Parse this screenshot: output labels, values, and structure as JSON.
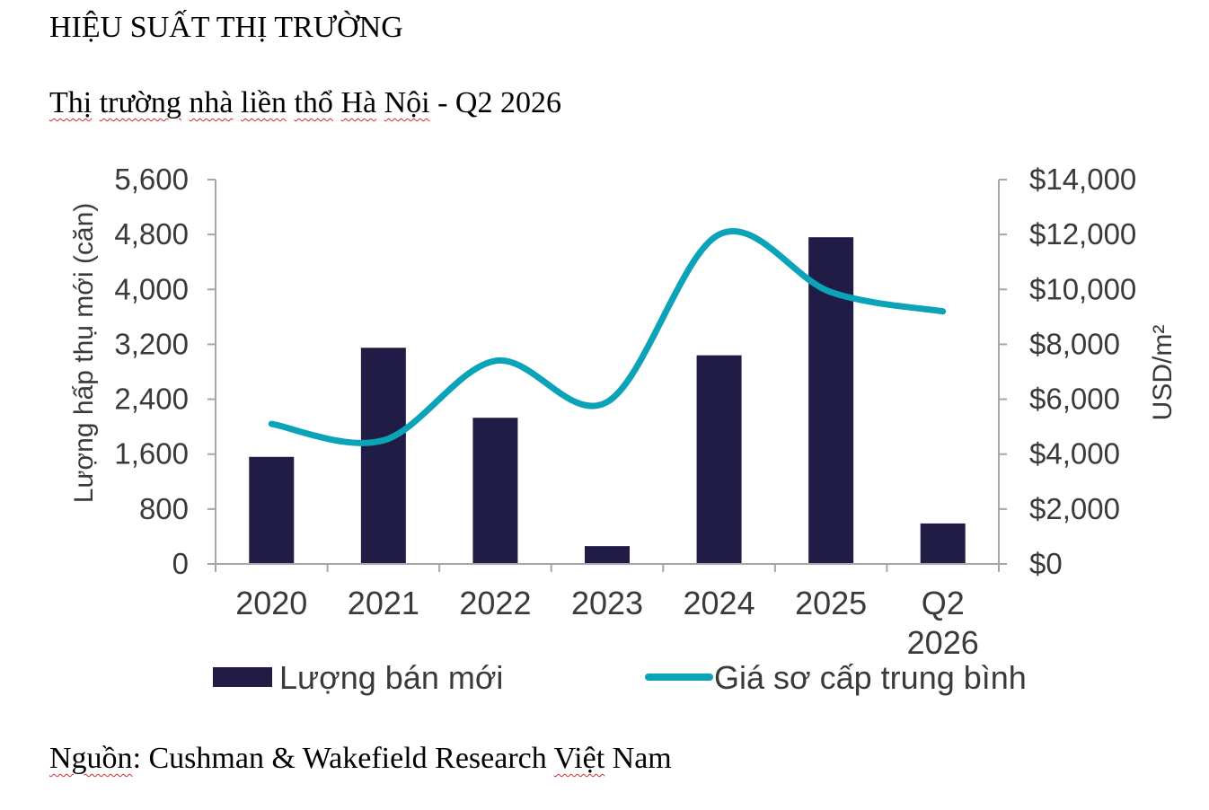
{
  "heading": "HIỆU SUẤT THỊ TRƯỜNG",
  "subtitle": {
    "part1": "Thị",
    "part2": "trường",
    "part3": "nhà",
    "part4": "liền",
    "part5": "thổ",
    "part6": "Hà",
    "part7": "Nội",
    "part8": "- Q2 2026"
  },
  "source": {
    "part1": "Nguồn",
    "part2": ": Cushman & Wakefield Research",
    "part3": "Việt",
    "part4": "Nam"
  },
  "colors": {
    "bar": "#211c45",
    "line": "#0ba3b8",
    "axis": "#a6a6a6",
    "text": "#3a3a3a"
  },
  "chart_data": {
    "type": "bar",
    "categories": [
      [
        "2020"
      ],
      [
        "2021"
      ],
      [
        "2022"
      ],
      [
        "2023"
      ],
      [
        "2024"
      ],
      [
        "2025"
      ],
      [
        "Q2",
        "2026"
      ]
    ],
    "series": [
      {
        "name": "Lượng bán mới",
        "type": "bar",
        "axis": "left",
        "values": [
          1560,
          3150,
          2130,
          260,
          3040,
          4760,
          590
        ]
      },
      {
        "name": "Giá sơ cấp trung bình",
        "type": "line",
        "axis": "right",
        "values": [
          5100,
          4500,
          7400,
          5900,
          12000,
          9900,
          9200
        ]
      }
    ],
    "y_left": {
      "label": "Lượng hấp thụ mới (căn)",
      "min": 0,
      "max": 5600,
      "ticks": [
        "0",
        "800",
        "1,600",
        "2,400",
        "3,200",
        "4,000",
        "4,800",
        "5,600"
      ]
    },
    "y_right": {
      "label": "USD/m²",
      "min": 0,
      "max": 14000,
      "ticks": [
        "$0",
        "$2,000",
        "$4,000",
        "$6,000",
        "$8,000",
        "$10,000",
        "$12,000",
        "$14,000"
      ]
    },
    "legend": "bottom"
  }
}
